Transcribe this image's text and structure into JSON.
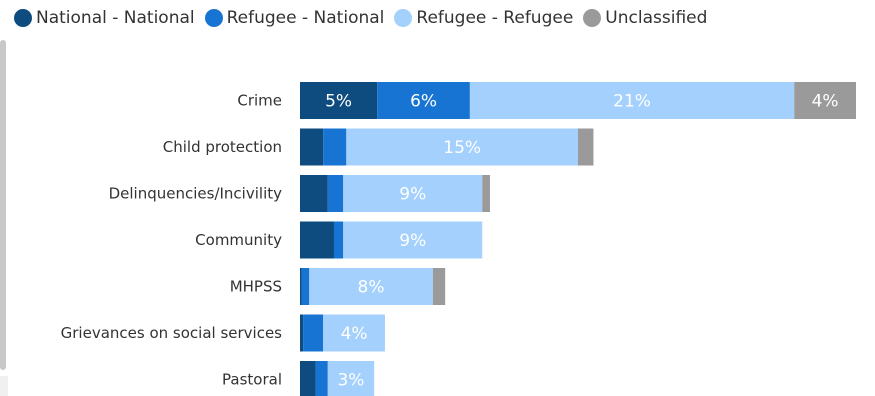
{
  "legend": [
    {
      "name": "National - National",
      "color": "#0e4b7e"
    },
    {
      "name": "Refugee - National",
      "color": "#1874d2"
    },
    {
      "name": "Refugee - Refugee",
      "color": "#a3d0fc"
    },
    {
      "name": "Unclassified",
      "color": "#9a9a9a"
    }
  ],
  "chart_data": {
    "type": "bar",
    "orientation": "horizontal",
    "stacked": true,
    "categories": [
      "Crime",
      "Child protection",
      "Delinquencies/Incivility",
      "Community",
      "MHPSS",
      "Grievances on social services",
      "Pastoral"
    ],
    "series": [
      {
        "name": "National - National",
        "color": "#0e4b7e",
        "values": [
          5,
          1.5,
          1.8,
          2.2,
          0.1,
          0.2,
          1.0
        ]
      },
      {
        "name": "Refugee - National",
        "color": "#1874d2",
        "values": [
          6,
          1.5,
          1.0,
          0.6,
          0.5,
          1.3,
          0.8
        ]
      },
      {
        "name": "Refugee - Refugee",
        "color": "#a3d0fc",
        "values": [
          21,
          15,
          9,
          9,
          8,
          4,
          3
        ]
      },
      {
        "name": "Unclassified",
        "color": "#9a9a9a",
        "values": [
          4,
          1,
          0.5,
          0,
          0.8,
          0,
          0
        ]
      }
    ],
    "data_labels": [
      [
        "5%",
        "6%",
        "21%",
        "4%"
      ],
      [
        "",
        "",
        "15%",
        ""
      ],
      [
        "",
        "",
        "9%",
        ""
      ],
      [
        "",
        "",
        "9%",
        ""
      ],
      [
        "",
        "",
        "8%",
        ""
      ],
      [
        "",
        "",
        "4%",
        ""
      ],
      [
        "",
        "",
        "3%",
        ""
      ]
    ],
    "xlim": [
      0,
      36
    ],
    "legend_position": "top-left"
  }
}
